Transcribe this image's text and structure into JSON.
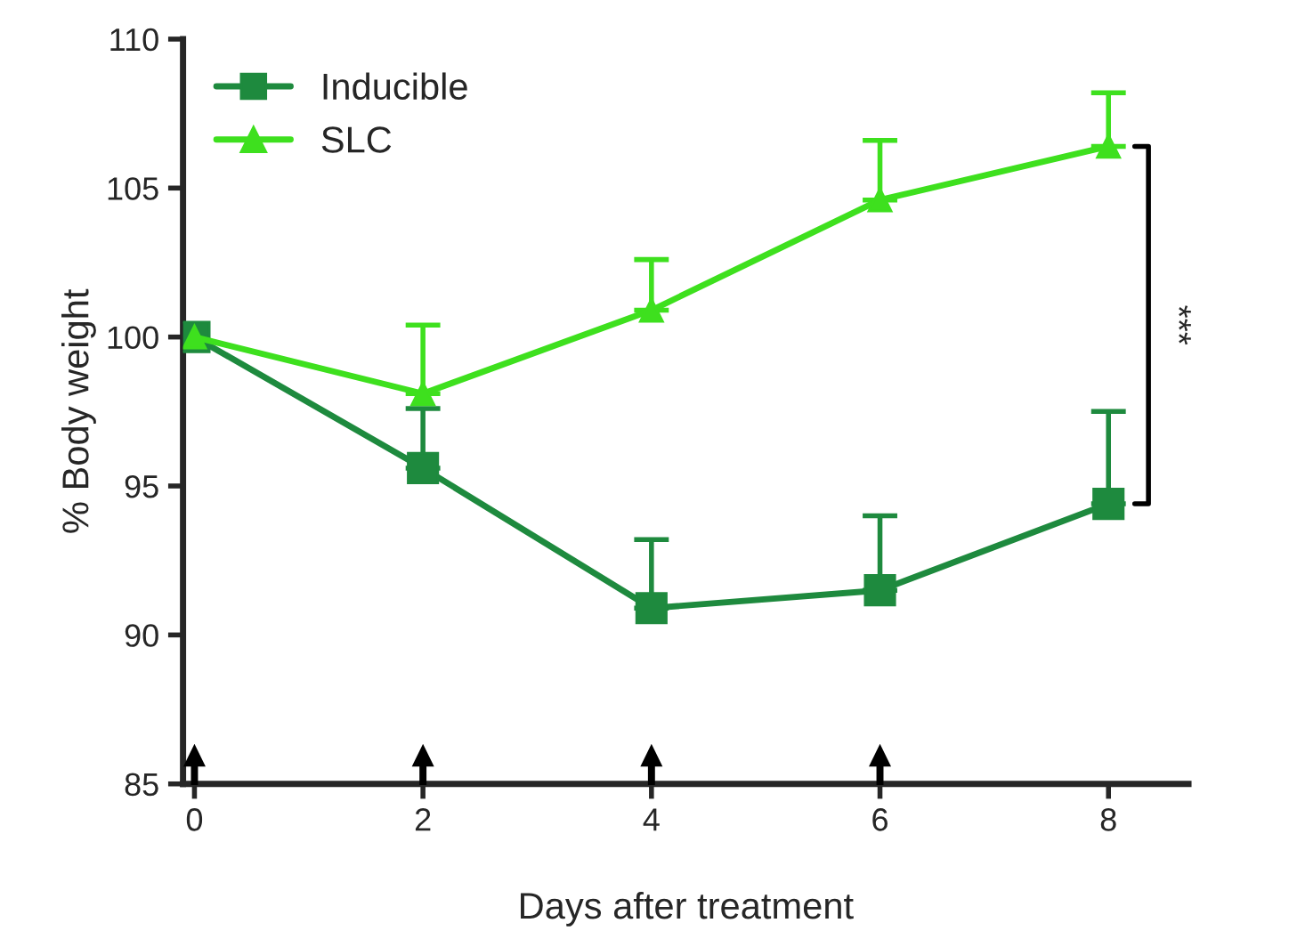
{
  "chart_data": {
    "type": "line",
    "xlabel": "Days after treatment",
    "ylabel": "% Body weight",
    "x": [
      0,
      2,
      4,
      6,
      8
    ],
    "series": [
      {
        "name": "Inducible",
        "color": "#1e8a3e",
        "marker": "square",
        "values": [
          100,
          95.6,
          90.9,
          91.5,
          94.4
        ],
        "errors": [
          null,
          [
            95.6,
            97.6
          ],
          [
            90.9,
            93.2
          ],
          [
            91.5,
            94.0
          ],
          [
            94.4,
            97.5
          ]
        ]
      },
      {
        "name": "SLC",
        "color": "#3ee01e",
        "marker": "triangle",
        "values": [
          100,
          98.1,
          100.9,
          104.6,
          106.4
        ],
        "errors": [
          null,
          [
            98.1,
            100.4
          ],
          [
            100.9,
            102.6
          ],
          [
            104.6,
            106.6
          ],
          [
            106.4,
            108.2
          ]
        ]
      }
    ],
    "xlim": [
      -0.1,
      8.7
    ],
    "xticks": [
      0,
      2,
      4,
      6,
      8
    ],
    "ylim": [
      85,
      110
    ],
    "yticks": [
      85,
      90,
      95,
      100,
      105,
      110
    ],
    "grid": false,
    "legend": "top left",
    "line_style": "solid",
    "annotations": [
      "***"
    ]
  }
}
